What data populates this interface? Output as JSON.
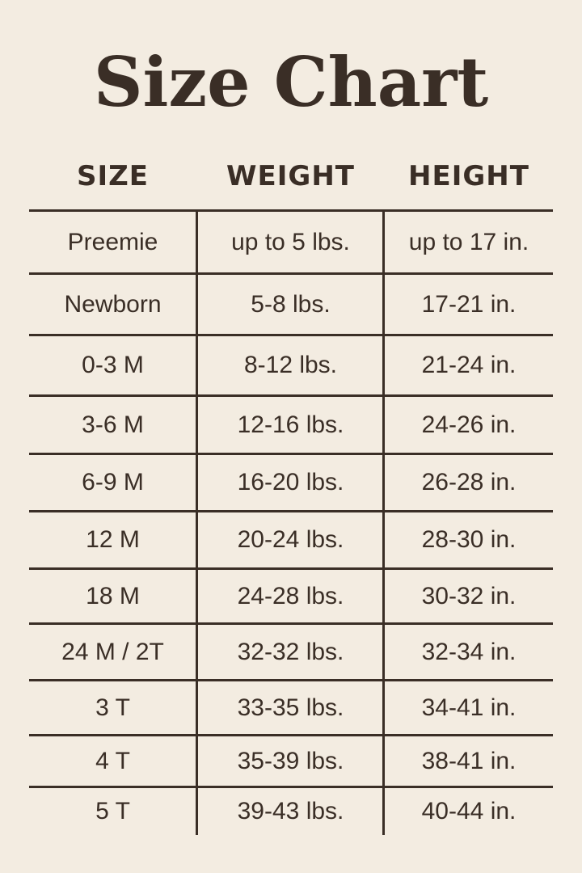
{
  "title": "Size Chart",
  "columns": [
    "SIZE",
    "WEIGHT",
    "HEIGHT"
  ],
  "rows": [
    [
      "Preemie",
      "up to 5 lbs.",
      "up to 17 in."
    ],
    [
      "Newborn",
      "5-8 lbs.",
      "17-21 in."
    ],
    [
      "0-3 M",
      "8-12 lbs.",
      "21-24 in."
    ],
    [
      "3-6 M",
      "12-16 lbs.",
      "24-26 in."
    ],
    [
      "6-9 M",
      "16-20 lbs.",
      "26-28 in."
    ],
    [
      "12 M",
      "20-24 lbs.",
      "28-30 in."
    ],
    [
      "18 M",
      "24-28 lbs.",
      "30-32 in."
    ],
    [
      "24 M / 2T",
      "32-32 lbs.",
      "32-34 in."
    ],
    [
      "3 T",
      "33-35 lbs.",
      "34-41 in."
    ],
    [
      "4 T",
      "35-39 lbs.",
      "38-41 in."
    ],
    [
      "5 T",
      "39-43 lbs.",
      "40-44 in."
    ]
  ],
  "colors": {
    "background": "#f3ece1",
    "text": "#3a2e26"
  }
}
